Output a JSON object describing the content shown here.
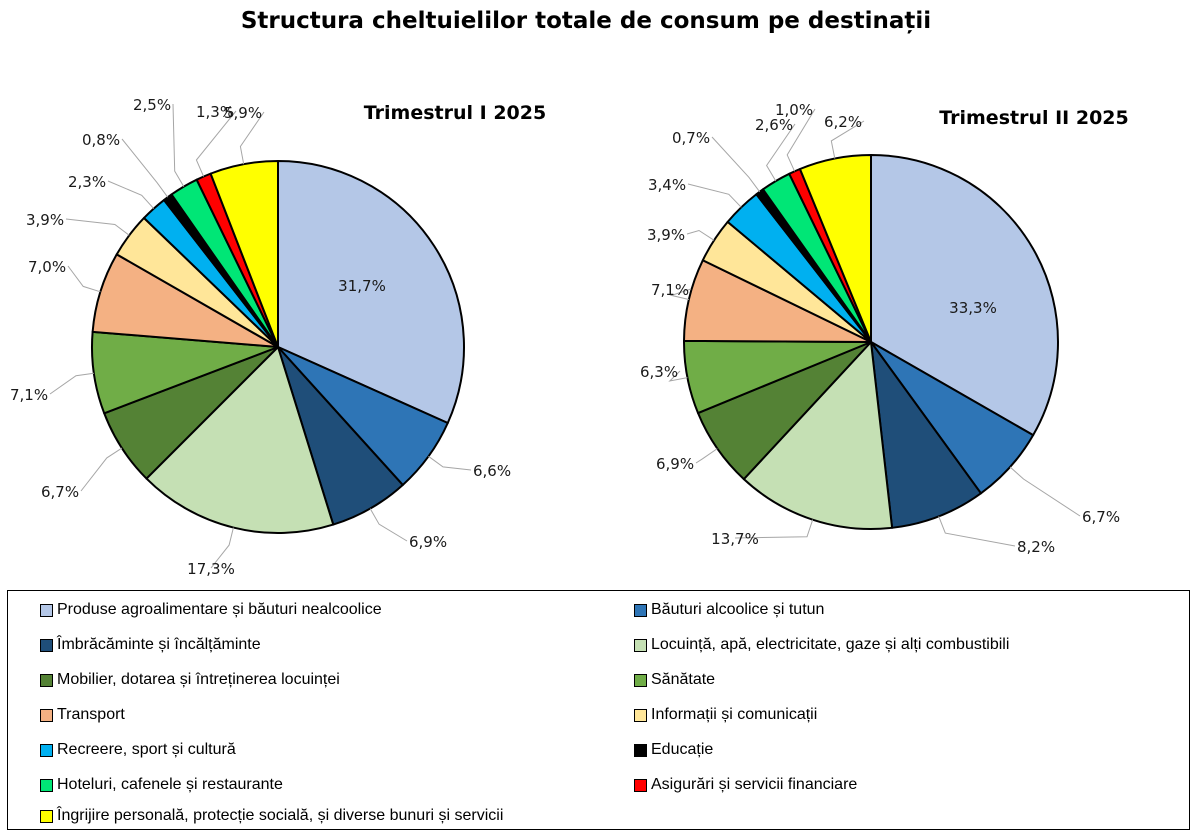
{
  "title": "Structura cheltuielilor totale de consum pe destinații",
  "colors": [
    "#b4c7e7",
    "#2e75b6",
    "#1f4e79",
    "#c5e0b4",
    "#548235",
    "#70ad47",
    "#f4b183",
    "#ffe699",
    "#00b0f0",
    "#000000",
    "#00e676",
    "#ff0000",
    "#ffff00"
  ],
  "chart_data": [
    {
      "type": "pie",
      "title": "Trimestrul  I 2025",
      "categories": [
        "Produse agroalimentare și băuturi nealcoolice",
        "Băuturi alcoolice și tutun",
        "Îmbrăcăminte și încălțăminte",
        "Locuință, apă, electricitate, gaze și alți combustibili",
        "Mobilier,  dotarea și întreținerea  locuinței",
        "Sănătate",
        "Transport",
        "Informații și comunicații",
        "Recreere, sport și cultură",
        "Educație",
        "Hoteluri,  cafenele și restaurante",
        "Asigurări și servicii financiare",
        "Îngrijire personală,  protecție socială, și diverse bunuri și servicii"
      ],
      "values": [
        31.7,
        6.6,
        6.9,
        17.3,
        6.7,
        7.1,
        7.0,
        3.9,
        2.3,
        0.8,
        2.5,
        1.3,
        5.9
      ],
      "labels": [
        "31,7%",
        "6,6%",
        "6,9%",
        "17,3%",
        "6,7%",
        "7,1%",
        "7,0%",
        "3,9%",
        "2,3%",
        "0,8%",
        "2,5%",
        "1,3%",
        "5,9%"
      ]
    },
    {
      "type": "pie",
      "title": "Trimestrul  II 2025",
      "categories": [
        "Produse agroalimentare și băuturi nealcoolice",
        "Băuturi alcoolice și tutun",
        "Îmbrăcăminte și încălțăminte",
        "Locuință, apă, electricitate, gaze și alți combustibili",
        "Mobilier,  dotarea și întreținerea  locuinței",
        "Sănătate",
        "Transport",
        "Informații și comunicații",
        "Recreere, sport și cultură",
        "Educație",
        "Hoteluri,  cafenele și restaurante",
        "Asigurări și servicii financiare",
        "Îngrijire personală,  protecție socială, și diverse bunuri și servicii"
      ],
      "values": [
        33.3,
        6.7,
        8.2,
        13.7,
        6.9,
        6.3,
        7.1,
        3.9,
        3.4,
        0.7,
        2.6,
        1.0,
        6.2
      ],
      "labels": [
        "33,3%",
        "6,7%",
        "8,2%",
        "13,7%",
        "6,9%",
        "6,3%",
        "7,1%",
        "3,9%",
        "3,4%",
        "0,7%",
        "2,6%",
        "1,0%",
        "6,2%"
      ]
    }
  ],
  "legend": [
    "Produse agroalimentare și băuturi nealcoolice",
    "Băuturi alcoolice și tutun",
    "Îmbrăcăminte și încălțăminte",
    "Locuință,  apă,  electricitate,  gaze și alți combustibili",
    "Mobilier,  dotarea și întreținerea  locuinței",
    "Sănătate",
    "Transport",
    "Informații și comunicații",
    "Recreere, sport și cultură",
    "Educație",
    "Hoteluri,  cafenele și restaurante",
    "Asigurări și servicii financiare",
    "Îngrijire personală,  protecție socială, și diverse bunuri și servicii"
  ]
}
